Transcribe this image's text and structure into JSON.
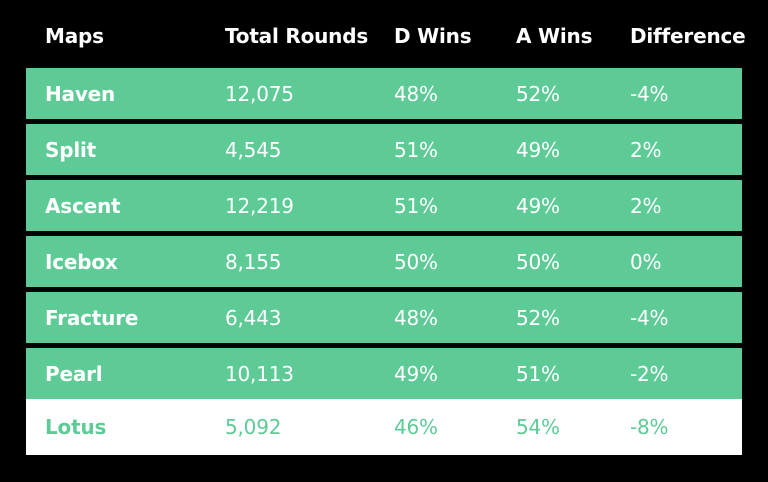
{
  "colors": {
    "background": "#000000",
    "row": "#5ecb97",
    "highlight_row": "#ffffff",
    "text_on_row": "#ffffff",
    "text_on_highlight": "#5ecb97"
  },
  "chart_data": {
    "type": "table",
    "columns": [
      "Maps",
      "Total Rounds",
      "D Wins",
      "A Wins",
      "Difference"
    ],
    "rows": [
      {
        "map": "Haven",
        "total_rounds": "12,075",
        "d_wins": "48%",
        "a_wins": "52%",
        "difference": "-4%",
        "highlight": false
      },
      {
        "map": "Split",
        "total_rounds": "4,545",
        "d_wins": "51%",
        "a_wins": "49%",
        "difference": "2%",
        "highlight": false
      },
      {
        "map": "Ascent",
        "total_rounds": "12,219",
        "d_wins": "51%",
        "a_wins": "49%",
        "difference": "2%",
        "highlight": false
      },
      {
        "map": "Icebox",
        "total_rounds": "8,155",
        "d_wins": "50%",
        "a_wins": "50%",
        "difference": "0%",
        "highlight": false
      },
      {
        "map": "Fracture",
        "total_rounds": "6,443",
        "d_wins": "48%",
        "a_wins": "52%",
        "difference": "-4%",
        "highlight": false
      },
      {
        "map": "Pearl",
        "total_rounds": "10,113",
        "d_wins": "49%",
        "a_wins": "51%",
        "difference": "-2%",
        "highlight": false
      },
      {
        "map": "Lotus",
        "total_rounds": "5,092",
        "d_wins": "46%",
        "a_wins": "54%",
        "difference": "-8%",
        "highlight": true
      }
    ]
  }
}
